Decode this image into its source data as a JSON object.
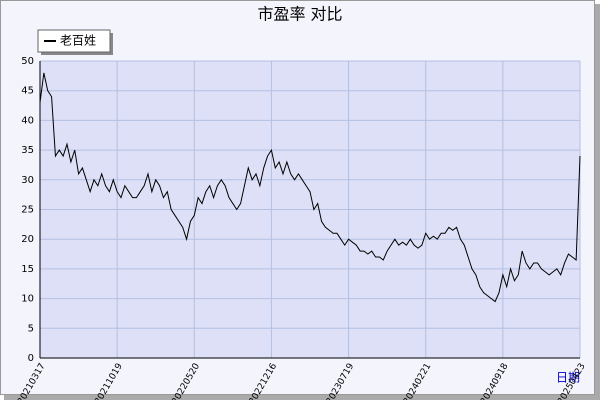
{
  "chart_data": {
    "type": "line",
    "title": "市盈率  对比",
    "xlabel": "日期",
    "series": [
      {
        "name": "老百姓",
        "color": "#000000",
        "values": [
          43,
          48,
          45,
          44,
          34,
          35,
          34,
          36,
          33,
          35,
          31,
          32,
          30,
          28,
          30,
          29,
          31,
          29,
          28,
          30,
          28,
          27,
          29,
          28,
          27,
          27,
          28,
          29,
          31,
          28,
          30,
          29,
          27,
          28,
          25,
          24,
          23,
          22,
          20,
          23,
          24,
          27,
          26,
          28,
          29,
          27,
          29,
          30,
          29,
          27,
          26,
          25,
          26,
          29,
          32,
          30,
          31,
          29,
          32,
          34,
          35,
          32,
          33,
          31,
          33,
          31,
          30,
          31,
          30,
          29,
          28,
          25,
          26,
          23,
          22,
          21.5,
          21,
          21,
          20,
          19,
          20,
          19.5,
          19,
          18,
          18,
          17.5,
          18,
          17,
          17,
          16.5,
          18,
          19,
          20,
          19,
          19.5,
          19,
          20,
          19,
          18.5,
          19,
          21,
          20,
          20.5,
          20,
          21,
          21,
          22,
          21.5,
          22,
          20,
          19,
          17,
          15,
          14,
          12,
          11,
          10.5,
          10,
          9.5,
          11,
          14,
          12,
          15,
          13,
          14,
          18,
          16,
          15,
          16,
          16,
          15,
          14.5,
          14,
          14.5,
          15,
          14,
          16,
          17.5,
          17,
          16.5,
          34
        ]
      }
    ],
    "xlim": [
      0,
      140
    ],
    "xticks": [
      {
        "value": 0,
        "label": "20210317"
      },
      {
        "value": 20,
        "label": "20211019"
      },
      {
        "value": 40,
        "label": "20220520"
      },
      {
        "value": 60,
        "label": "20221216"
      },
      {
        "value": 80,
        "label": "20230719"
      },
      {
        "value": 100,
        "label": "20240221"
      },
      {
        "value": 120,
        "label": "20240918"
      },
      {
        "value": 140,
        "label": "20250423"
      }
    ],
    "ylim": [
      0,
      50
    ],
    "yticks": [
      0,
      5,
      10,
      15,
      20,
      25,
      30,
      35,
      40,
      45,
      50
    ],
    "grid": true
  }
}
